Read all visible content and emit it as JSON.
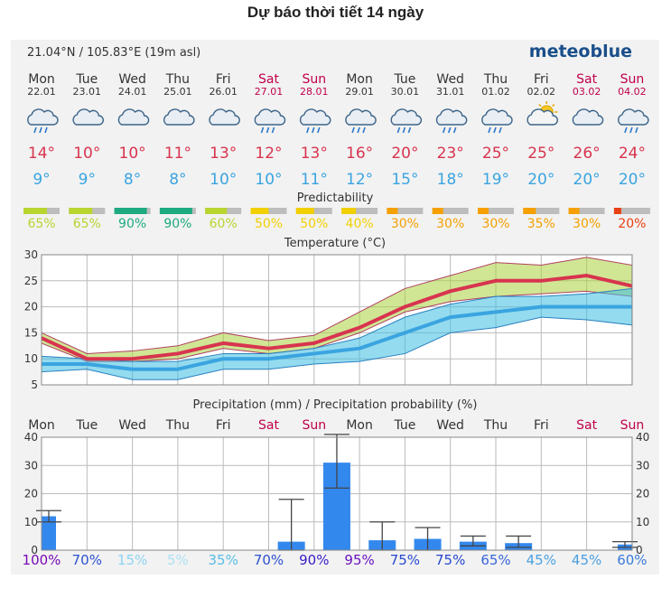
{
  "page": {
    "title": "Dự báo thời tiết 14 ngày"
  },
  "header": {
    "location": "21.04°N / 105.83°E (19m asl)",
    "brand": "meteoblue"
  },
  "colors": {
    "weekday": "#333333",
    "weekend": "#c0004b",
    "max_temp": "#d8344f",
    "min_temp": "#3aa4e0",
    "rain_bar": "#3388ee",
    "grid": "#bbbbbb"
  },
  "days": [
    {
      "name": "Mon",
      "date": "22.01",
      "weekend": false,
      "icon": "cloud-rain-icon",
      "max": "14°",
      "min": "9°",
      "pred": "65%",
      "pred_color": "#b8d530",
      "prob": "100%",
      "prob_color": "#7a0ab7"
    },
    {
      "name": "Tue",
      "date": "23.01",
      "weekend": false,
      "icon": "cloud-icon",
      "max": "10°",
      "min": "9°",
      "pred": "65%",
      "pred_color": "#b8d530",
      "prob": "70%",
      "prob_color": "#2c52cf"
    },
    {
      "name": "Wed",
      "date": "24.01",
      "weekend": false,
      "icon": "cloud-icon",
      "max": "10°",
      "min": "8°",
      "pred": "90%",
      "pred_color": "#1eaa80",
      "prob": "15%",
      "prob_color": "#8dd3f2"
    },
    {
      "name": "Thu",
      "date": "25.01",
      "weekend": false,
      "icon": "cloud-icon",
      "max": "11°",
      "min": "8°",
      "pred": "90%",
      "pred_color": "#1eaa80",
      "prob": "5%",
      "prob_color": "#aee0f4"
    },
    {
      "name": "Fri",
      "date": "26.01",
      "weekend": false,
      "icon": "cloud-icon",
      "max": "13°",
      "min": "10°",
      "pred": "60%",
      "pred_color": "#b8d530",
      "prob": "35%",
      "prob_color": "#58bde6"
    },
    {
      "name": "Sat",
      "date": "27.01",
      "weekend": true,
      "icon": "cloud-rain-icon",
      "max": "12°",
      "min": "10°",
      "pred": "50%",
      "pred_color": "#f2d000",
      "prob": "70%",
      "prob_color": "#2c52cf"
    },
    {
      "name": "Sun",
      "date": "28.01",
      "weekend": true,
      "icon": "cloud-rain-icon",
      "max": "13°",
      "min": "11°",
      "pred": "50%",
      "pred_color": "#f2d000",
      "prob": "90%",
      "prob_color": "#3a1ac6"
    },
    {
      "name": "Mon",
      "date": "29.01",
      "weekend": false,
      "icon": "cloud-rain-icon",
      "max": "16°",
      "min": "12°",
      "pred": "40%",
      "pred_color": "#f2d000",
      "prob": "95%",
      "prob_color": "#6a12c0"
    },
    {
      "name": "Tue",
      "date": "30.01",
      "weekend": false,
      "icon": "cloud-rain-icon",
      "max": "20°",
      "min": "15°",
      "pred": "30%",
      "pred_color": "#f5a000",
      "prob": "75%",
      "prob_color": "#2848cf"
    },
    {
      "name": "Wed",
      "date": "31.01",
      "weekend": false,
      "icon": "cloud-rain-icon",
      "max": "23°",
      "min": "18°",
      "pred": "30%",
      "pred_color": "#f5a000",
      "prob": "75%",
      "prob_color": "#2848cf"
    },
    {
      "name": "Thu",
      "date": "01.02",
      "weekend": false,
      "icon": "cloud-rain-icon",
      "max": "25°",
      "min": "19°",
      "pred": "30%",
      "pred_color": "#f5a000",
      "prob": "65%",
      "prob_color": "#3766d6"
    },
    {
      "name": "Fri",
      "date": "02.02",
      "weekend": false,
      "icon": "sun-cloud-icon",
      "max": "25°",
      "min": "20°",
      "pred": "35%",
      "pred_color": "#f5a000",
      "prob": "45%",
      "prob_color": "#4aa0e2"
    },
    {
      "name": "Sat",
      "date": "03.02",
      "weekend": true,
      "icon": "cloud-icon",
      "max": "26°",
      "min": "20°",
      "pred": "30%",
      "pred_color": "#f5a000",
      "prob": "45%",
      "prob_color": "#4aa0e2"
    },
    {
      "name": "Sun",
      "date": "04.02",
      "weekend": true,
      "icon": "cloud-rain-icon",
      "max": "24°",
      "min": "20°",
      "pred": "20%",
      "pred_color": "#e84010",
      "prob": "60%",
      "prob_color": "#3a7ad9"
    }
  ],
  "predictability": {
    "title": "Predictability"
  },
  "chart_data": [
    {
      "type": "area",
      "title": "Temperature (°C)",
      "ylim": [
        5,
        30
      ],
      "yticks": [
        "5",
        "10",
        "15",
        "20",
        "25",
        "30"
      ],
      "categories": [
        "22.01",
        "23.01",
        "24.01",
        "25.01",
        "26.01",
        "27.01",
        "28.01",
        "29.01",
        "30.01",
        "31.01",
        "01.02",
        "02.02",
        "03.02",
        "04.02"
      ],
      "series": [
        {
          "values": [
            14,
            10,
            10,
            11,
            13,
            12,
            13,
            16,
            20,
            23,
            25,
            25,
            26,
            24
          ]
        },
        {
          "values": [
            9,
            9,
            8,
            8,
            10,
            10,
            11,
            12,
            15,
            18,
            19,
            20,
            20,
            20
          ]
        }
      ],
      "max_band_low": [
        13,
        9.5,
        9.5,
        10,
        12,
        11,
        12,
        15,
        19,
        21,
        22,
        22.5,
        23,
        22
      ],
      "max_band_high": [
        15,
        11,
        11.5,
        12.5,
        15,
        13.5,
        14.5,
        19,
        23.5,
        26,
        28.5,
        28,
        29.5,
        28
      ],
      "min_band_low": [
        7.5,
        8,
        6,
        6,
        8,
        8,
        9,
        9.5,
        11,
        15,
        16,
        18,
        17.5,
        16.5
      ],
      "min_band_high": [
        10.5,
        10,
        9.5,
        9.5,
        11,
        11,
        12,
        14,
        18,
        20.5,
        22,
        22,
        22.5,
        23.5
      ],
      "grid": true
    },
    {
      "type": "bar",
      "title": "Precipitation (mm) / Precipitation probability (%)",
      "ylim": [
        0,
        40
      ],
      "yticks": [
        "0",
        "10",
        "20",
        "30",
        "40"
      ],
      "categories": [
        "22.01",
        "23.01",
        "24.01",
        "25.01",
        "26.01",
        "27.01",
        "28.01",
        "29.01",
        "30.01",
        "31.01",
        "01.02",
        "02.02",
        "03.02",
        "04.02"
      ],
      "values": [
        12,
        0,
        0,
        0,
        0,
        3,
        31,
        3.5,
        4,
        3,
        2.5,
        0,
        0,
        2
      ],
      "range_low": [
        10,
        null,
        null,
        null,
        null,
        0,
        22,
        0,
        0,
        1.5,
        1,
        null,
        null,
        1
      ],
      "range_high": [
        14,
        null,
        null,
        null,
        null,
        18,
        41,
        10,
        8,
        5,
        5,
        null,
        null,
        3
      ],
      "probabilities": [
        "100%",
        "70%",
        "15%",
        "5%",
        "35%",
        "70%",
        "90%",
        "95%",
        "75%",
        "75%",
        "65%",
        "45%",
        "45%",
        "60%"
      ],
      "grid": true
    }
  ]
}
